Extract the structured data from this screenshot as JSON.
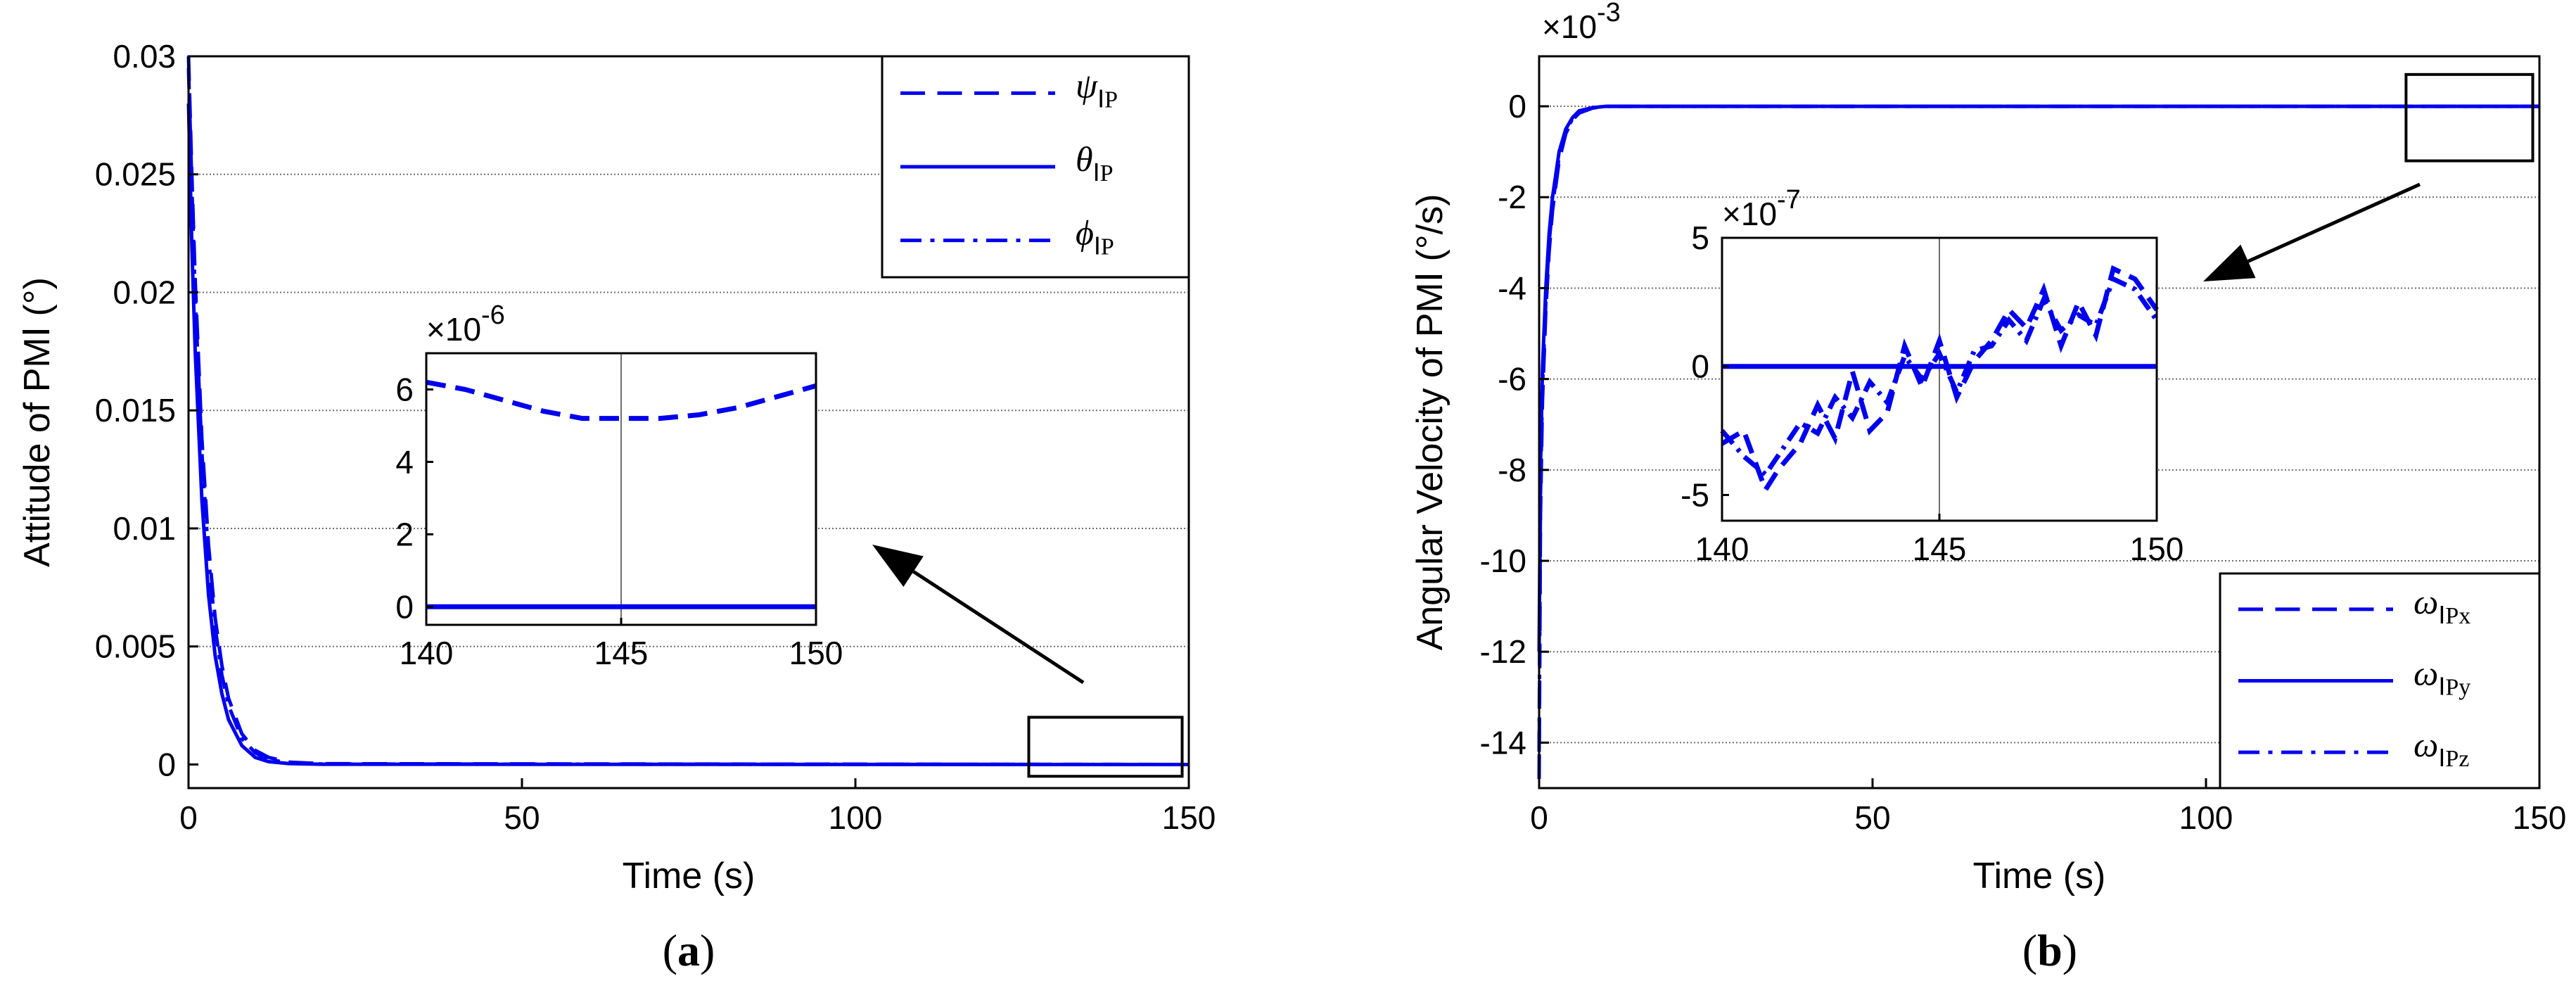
{
  "figure": {
    "captions": [
      "(a)",
      "(b)"
    ],
    "colors": {
      "series": "#0000ee",
      "axes": "#000000",
      "grid": "#6e6e6e"
    }
  },
  "chart_data": [
    {
      "id": "a",
      "type": "line",
      "caption": "(a)",
      "xlabel": "Time (s)",
      "ylabel": "Attitude of PMⅠ (°)",
      "xlim": [
        0,
        150
      ],
      "ylim": [
        -0.001,
        0.03
      ],
      "xticks": [
        0,
        50,
        100,
        150
      ],
      "xtick_labels": [
        "0",
        "50",
        "100",
        "150"
      ],
      "yticks": [
        0,
        0.005,
        0.01,
        0.015,
        0.02,
        0.025,
        0.03
      ],
      "ytick_labels": [
        "0",
        "0.005",
        "0.01",
        "0.015",
        "0.02",
        "0.025",
        "0.03"
      ],
      "grid": "horizontal major lines",
      "legend_position": "top-right",
      "series": [
        {
          "name": "ψ",
          "sub": "ⅠP",
          "style": "dashed",
          "x": [
            0,
            0.5,
            1,
            2,
            3,
            4,
            5,
            6,
            8,
            10,
            12,
            15,
            20,
            150
          ],
          "y": [
            0.03,
            0.025,
            0.0205,
            0.0138,
            0.0093,
            0.0062,
            0.0042,
            0.0028,
            0.0013,
            0.0006,
            0.0003,
            0.0001,
            3e-05,
            0
          ]
        },
        {
          "name": "θ",
          "sub": "ⅠP",
          "style": "solid",
          "x": [
            0,
            0.5,
            1,
            2,
            3,
            4,
            5,
            6,
            8,
            10,
            12,
            15,
            20,
            150
          ],
          "y": [
            0.028,
            0.022,
            0.0175,
            0.0112,
            0.0072,
            0.0046,
            0.003,
            0.0019,
            0.0008,
            0.0003,
            0.00012,
            4e-05,
            1e-05,
            0
          ]
        },
        {
          "name": "ϕ",
          "sub": "ⅠP",
          "style": "dashdot",
          "x": [
            0,
            0.5,
            1,
            2,
            3,
            4,
            5,
            6,
            8,
            10,
            12,
            15,
            20,
            150
          ],
          "y": [
            0.0295,
            0.0245,
            0.0198,
            0.0132,
            0.0088,
            0.0058,
            0.0038,
            0.0025,
            0.0011,
            0.0005,
            0.0002,
            8e-05,
            2e-05,
            0
          ]
        }
      ],
      "zoom_box": {
        "x": [
          126,
          149
        ],
        "y": [
          -0.0005,
          0.002
        ]
      },
      "inset": {
        "exponent": "×10",
        "exponent_power": "-6",
        "xlim": [
          140,
          150
        ],
        "ylim": [
          -0.5,
          7
        ],
        "xticks": [
          140,
          145,
          150
        ],
        "xtick_labels": [
          "140",
          "145",
          "150"
        ],
        "yticks": [
          0,
          2,
          4,
          6
        ],
        "ytick_labels": [
          "0",
          "2",
          "4",
          "6"
        ],
        "series": [
          {
            "style": "dashed",
            "x": [
              140,
              141,
              142,
              143,
              144,
              145,
              146,
              147,
              148,
              149,
              150
            ],
            "y": [
              6.2,
              6.0,
              5.7,
              5.4,
              5.2,
              5.2,
              5.2,
              5.3,
              5.5,
              5.8,
              6.1
            ]
          },
          {
            "style": "solid",
            "x": [
              140,
              150
            ],
            "y": [
              0.0,
              0.0
            ]
          }
        ]
      }
    },
    {
      "id": "b",
      "type": "line",
      "caption": "(b)",
      "xlabel": "Time (s)",
      "ylabel": "Angular Velocity of PMⅠ (°/s)",
      "exponent": "×10",
      "exponent_power": "-3",
      "xlim": [
        0,
        150
      ],
      "ylim": [
        -15,
        1.1
      ],
      "xticks": [
        0,
        50,
        100,
        150
      ],
      "xtick_labels": [
        "0",
        "50",
        "100",
        "150"
      ],
      "yticks": [
        0,
        -2,
        -4,
        -6,
        -8,
        -10,
        -12,
        -14
      ],
      "ytick_labels": [
        "0",
        "-2",
        "-4",
        "-6",
        "-8",
        "-10",
        "-12",
        "-14"
      ],
      "grid": "horizontal major lines",
      "legend_position": "bottom-right",
      "series": [
        {
          "name": "ω",
          "sub": "ⅠPx",
          "style": "dashed",
          "x": [
            0,
            0.2,
            0.5,
            1,
            1.5,
            2,
            3,
            4,
            5,
            6,
            8,
            10,
            150
          ],
          "y": [
            -14.8,
            -9,
            -6.5,
            -4.5,
            -3.2,
            -2.3,
            -1.2,
            -0.6,
            -0.3,
            -0.15,
            -0.04,
            0,
            0
          ]
        },
        {
          "name": "ω",
          "sub": "ⅠPy",
          "style": "solid",
          "x": [
            0,
            0.2,
            0.5,
            1,
            1.5,
            2,
            3,
            4,
            5,
            6,
            8,
            10,
            150
          ],
          "y": [
            -12,
            -8,
            -5.8,
            -4.0,
            -2.8,
            -2.0,
            -1.0,
            -0.5,
            -0.25,
            -0.1,
            -0.03,
            0,
            0
          ]
        },
        {
          "name": "ω",
          "sub": "ⅠPz",
          "style": "dashdot",
          "x": [
            0,
            0.2,
            0.5,
            1,
            1.5,
            2,
            3,
            4,
            5,
            6,
            8,
            10,
            150
          ],
          "y": [
            -14.2,
            -8.6,
            -6.2,
            -4.3,
            -3.0,
            -2.2,
            -1.1,
            -0.55,
            -0.28,
            -0.12,
            -0.035,
            0,
            0
          ]
        }
      ],
      "zoom_box": {
        "x": [
          130,
          149
        ],
        "y": [
          -1.2,
          0.7
        ]
      },
      "inset": {
        "exponent": "×10",
        "exponent_power": "-7",
        "xlim": [
          140,
          150
        ],
        "ylim": [
          -6,
          5
        ],
        "xticks": [
          140,
          145,
          150
        ],
        "xtick_labels": [
          "140",
          "145",
          "150"
        ],
        "yticks": [
          5,
          0,
          -5
        ],
        "ytick_labels": [
          "5",
          "0",
          "-5"
        ],
        "series": [
          {
            "style": "dashed",
            "x": [
              140,
              140.5,
              141,
              141.3,
              141.8,
              142.2,
              142.6,
              143,
              143.4,
              143.8,
              144.2,
              144.6,
              145,
              145.4,
              145.8,
              146.2,
              146.6,
              147,
              147.4,
              147.8,
              148.2,
              148.6,
              149,
              149.5,
              150
            ],
            "y": [
              -3,
              -2.5,
              -4.8,
              -4,
              -3,
              -1.5,
              -2.8,
              -0.2,
              -2.5,
              -1.8,
              0.8,
              -0.8,
              1,
              -1.2,
              0.2,
              1,
              2.2,
              1.5,
              3,
              0.8,
              2.5,
              1.2,
              3.8,
              3.4,
              2.2
            ]
          },
          {
            "style": "dashdot",
            "x": [
              140,
              140.5,
              141,
              141.4,
              141.8,
              142.2,
              142.6,
              143,
              143.4,
              143.8,
              144.2,
              144.6,
              145,
              145.4,
              145.8,
              146.2,
              146.6,
              147,
              147.4,
              147.8,
              148.2,
              148.6,
              149,
              149.5,
              150
            ],
            "y": [
              -2.5,
              -3.5,
              -4.2,
              -3.2,
              -2.2,
              -2.6,
              -1.2,
              -2.0,
              -0.6,
              -1.4,
              0.4,
              -0.5,
              0.5,
              -1.0,
              0.6,
              0.8,
              1.8,
              1.0,
              2.6,
              1.4,
              2.0,
              1.6,
              3.4,
              3.0,
              1.8
            ]
          },
          {
            "style": "solid",
            "x": [
              140,
              150
            ],
            "y": [
              0,
              0
            ]
          }
        ]
      }
    }
  ]
}
